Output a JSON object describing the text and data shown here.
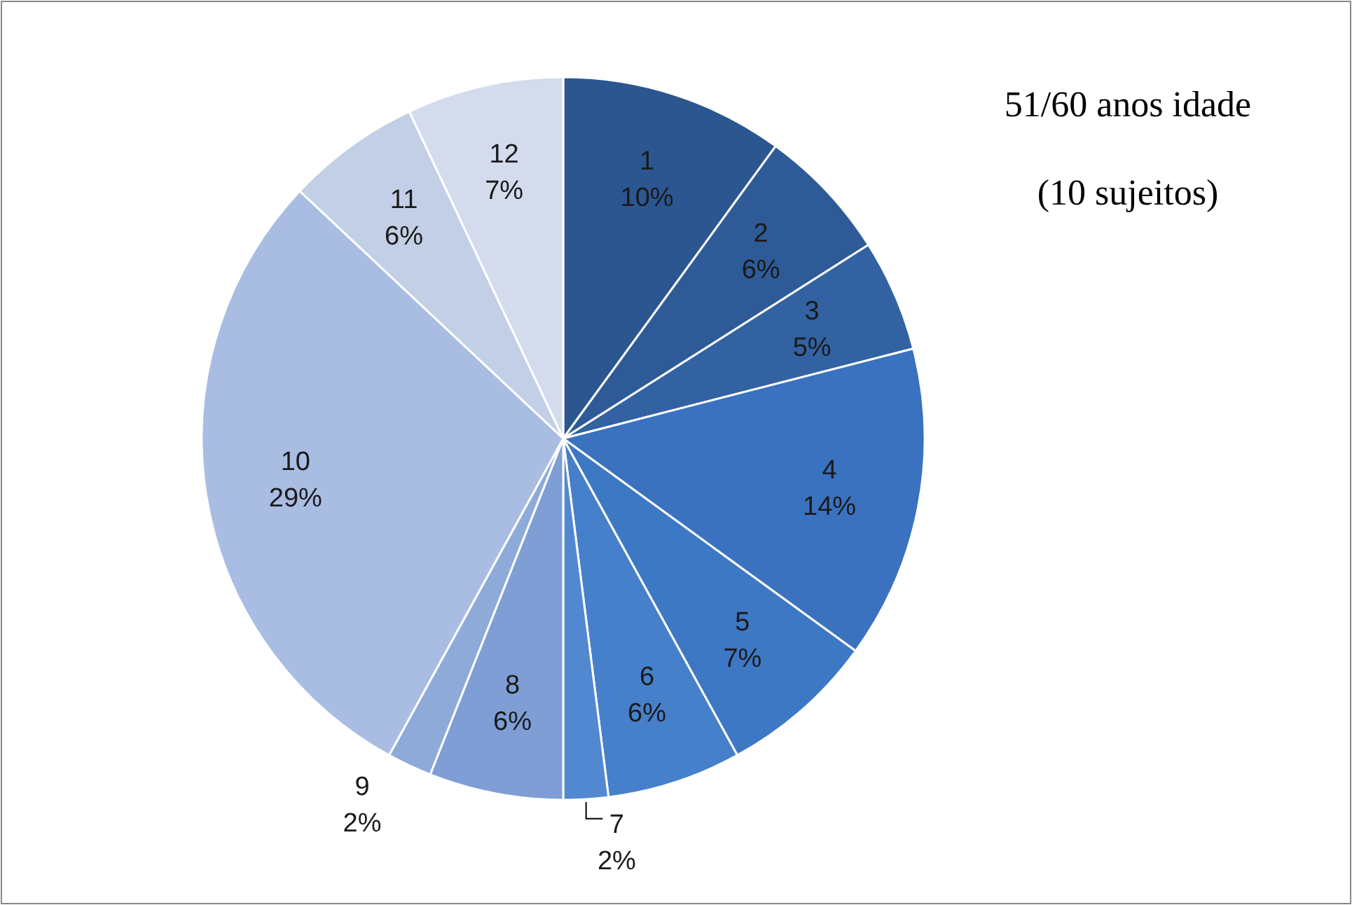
{
  "chart_data": {
    "type": "pie",
    "title": "51/60 anos idade",
    "subtitle": "(10 sujeitos)",
    "categories": [
      "1",
      "2",
      "3",
      "4",
      "5",
      "6",
      "7",
      "8",
      "9",
      "10",
      "11",
      "12"
    ],
    "values": [
      10,
      6,
      5,
      14,
      7,
      6,
      2,
      6,
      2,
      29,
      6,
      7
    ],
    "colors": [
      "#2b5690",
      "#2e5b98",
      "#3262a2",
      "#3a72bf",
      "#3d78c5",
      "#4680cb",
      "#5288cf",
      "#7e9ed5",
      "#8eaad9",
      "#a9bde3",
      "#c3cfe6",
      "#d3dbed"
    ],
    "value_labels": [
      "10%",
      "6%",
      "5%",
      "14%",
      "7%",
      "6%",
      "2%",
      "6%",
      "2%",
      "29%",
      "6%",
      "7%"
    ]
  }
}
